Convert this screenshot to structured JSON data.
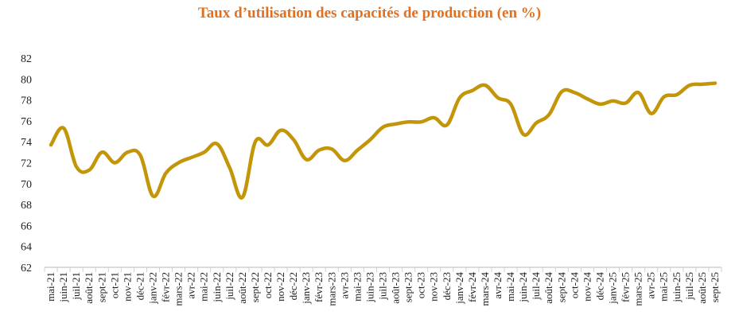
{
  "chart_data": {
    "type": "line",
    "title": "Taux d’utilisation des capacités de production (en %)",
    "xlabel": "",
    "ylabel": "",
    "ylim": [
      62,
      82
    ],
    "yticks": [
      62,
      64,
      66,
      68,
      70,
      72,
      74,
      76,
      78,
      80,
      82
    ],
    "grid": false,
    "legend": "none",
    "categories": [
      "mai-21",
      "juin-21",
      "juil-21",
      "août-21",
      "sept-21",
      "oct-21",
      "nov-21",
      "déc-21",
      "janv-22",
      "févr-22",
      "mars-22",
      "avr-22",
      "mai-22",
      "juin-22",
      "juil-22",
      "août-22",
      "sept-22",
      "oct-22",
      "nov-22",
      "déc-22",
      "janv-23",
      "févr-23",
      "mars-23",
      "avr-23",
      "mai-23",
      "juin-23",
      "juil-23",
      "août-23",
      "sept-23",
      "oct-23",
      "nov-23",
      "déc-23",
      "janv-24",
      "févr-24",
      "mars-24",
      "avr-24",
      "mai-24",
      "juin-24",
      "juil-24",
      "août-24",
      "sept-24",
      "oct-24",
      "nov-24",
      "déc-24",
      "janv-25",
      "févr-25",
      "mars-25",
      "avr-25",
      "mai-25",
      "juin-25",
      "juil-25",
      "août-25",
      "sept-25"
    ],
    "series": [
      {
        "name": "Taux d’utilisation",
        "color": "#C3960A",
        "values": [
          73.7,
          75.3,
          71.6,
          71.3,
          73.0,
          72.0,
          73.0,
          72.7,
          68.8,
          71.0,
          72.0,
          72.5,
          73.0,
          73.8,
          71.5,
          68.7,
          74.0,
          73.7,
          75.1,
          74.2,
          72.3,
          73.2,
          73.3,
          72.2,
          73.2,
          74.2,
          75.4,
          75.7,
          75.9,
          75.9,
          76.3,
          75.6,
          78.2,
          78.9,
          79.4,
          78.2,
          77.6,
          74.7,
          75.8,
          76.6,
          78.8,
          78.7,
          78.1,
          77.6,
          77.9,
          77.7,
          78.7,
          76.7,
          78.3,
          78.5,
          79.4,
          79.5,
          79.6
        ]
      }
    ],
    "title_color": "#E2701F"
  }
}
